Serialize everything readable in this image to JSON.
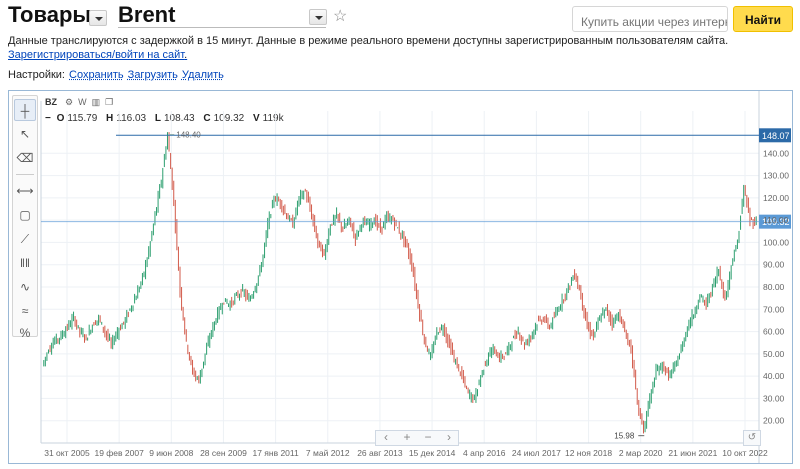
{
  "header": {
    "section": "Товары",
    "instrument": "Brent",
    "buy_placeholder": "Купить акции через интернет",
    "find_label": "Найти",
    "star_icon": "star-icon",
    "dropdown_icon": "chevron-down-icon"
  },
  "notice": {
    "text": "Данные транслируются с задержкой в 15 минут. Данные в режиме реального времени доступны зарегистрированным пользователям сайта.",
    "register_link": "Зарегистрироваться/войти на сайт",
    "register_suffix": "."
  },
  "settings": {
    "label": "Настройки:",
    "save": "Сохранить",
    "load": "Загрузить",
    "delete": "Удалить"
  },
  "chart_header": {
    "ticker": "BZ",
    "period_letter": "W",
    "ohlc": {
      "o_label": "O",
      "o": "115.79",
      "h_label": "H",
      "h": "116.03",
      "l_label": "L",
      "l": "108.43",
      "c_label": "C",
      "c": "109.32",
      "v_label": "V",
      "v": "119k"
    }
  },
  "toolbar": {
    "tools": [
      "crosshair-icon",
      "cursor-icon",
      "eraser-icon",
      "line-icon",
      "rectangle-icon",
      "trendline-icon",
      "vertical-lines-icon",
      "wave-icon",
      "indicator-icon",
      "percent-icon"
    ],
    "percent_label": "%"
  },
  "chart_data": {
    "type": "line",
    "title": "",
    "xlabel": "",
    "ylabel": "",
    "ylim": [
      10,
      150
    ],
    "y_ticks": [
      "20.00",
      "30.00",
      "40.00",
      "50.00",
      "60.00",
      "70.00",
      "80.00",
      "90.00",
      "100.00",
      "110.00",
      "120.00",
      "130.00",
      "140.00"
    ],
    "x_ticks": [
      "31 окт 2005",
      "19 фев 2007",
      "9 июн 2008",
      "28 сен 2009",
      "17 янв 2011",
      "7 май 2012",
      "26 авг 2013",
      "15 дек 2014",
      "4 апр 2016",
      "24 июл 2017",
      "12 ноя 2018",
      "2 мар 2020",
      "21 июн 2021",
      "10 окт 2022"
    ],
    "series": [
      {
        "values": [
          45,
          52,
          56,
          58,
          62,
          66,
          60,
          57,
          63,
          66,
          60,
          54,
          60,
          64,
          70,
          76,
          84,
          96,
          112,
          128,
          148,
          118,
          78,
          55,
          42,
          38,
          50,
          60,
          68,
          74,
          72,
          76,
          78,
          74,
          80,
          90,
          108,
          120,
          118,
          112,
          108,
          120,
          123,
          112,
          100,
          94,
          108,
          112,
          106,
          110,
          102,
          109,
          108,
          110,
          106,
          111,
          110,
          105,
          100,
          90,
          72,
          56,
          48,
          60,
          62,
          54,
          46,
          40,
          32,
          30,
          40,
          48,
          52,
          48,
          50,
          56,
          60,
          54,
          58,
          64,
          66,
          62,
          68,
          74,
          80,
          86,
          76,
          62,
          58,
          66,
          70,
          64,
          68,
          60,
          52,
          28,
          16,
          30,
          42,
          45,
          40,
          44,
          52,
          62,
          68,
          76,
          72,
          80,
          88,
          74,
          90,
          100,
          124,
          110,
          109
        ]
      }
    ],
    "annotations": [
      {
        "label": "148.40",
        "x_index": 20,
        "value": 148.4
      },
      {
        "label": "15.98",
        "x_index": 96,
        "value": 15.98
      }
    ],
    "price_levels": [
      {
        "label": "148.07",
        "value": 148.07,
        "color": "#2c6aa8"
      },
      {
        "label": "109.32",
        "value": 109.32,
        "color": "#5b9ad6"
      }
    ],
    "colors": {
      "up": "#2b9e6e",
      "down": "#d25a4a",
      "grid": "#edf1f5",
      "axis_text": "#666666"
    },
    "grid": true
  },
  "nav": {
    "prev": "‹",
    "zoom_in": "+",
    "zoom_out": "−",
    "next": "›",
    "reset": "↺"
  }
}
